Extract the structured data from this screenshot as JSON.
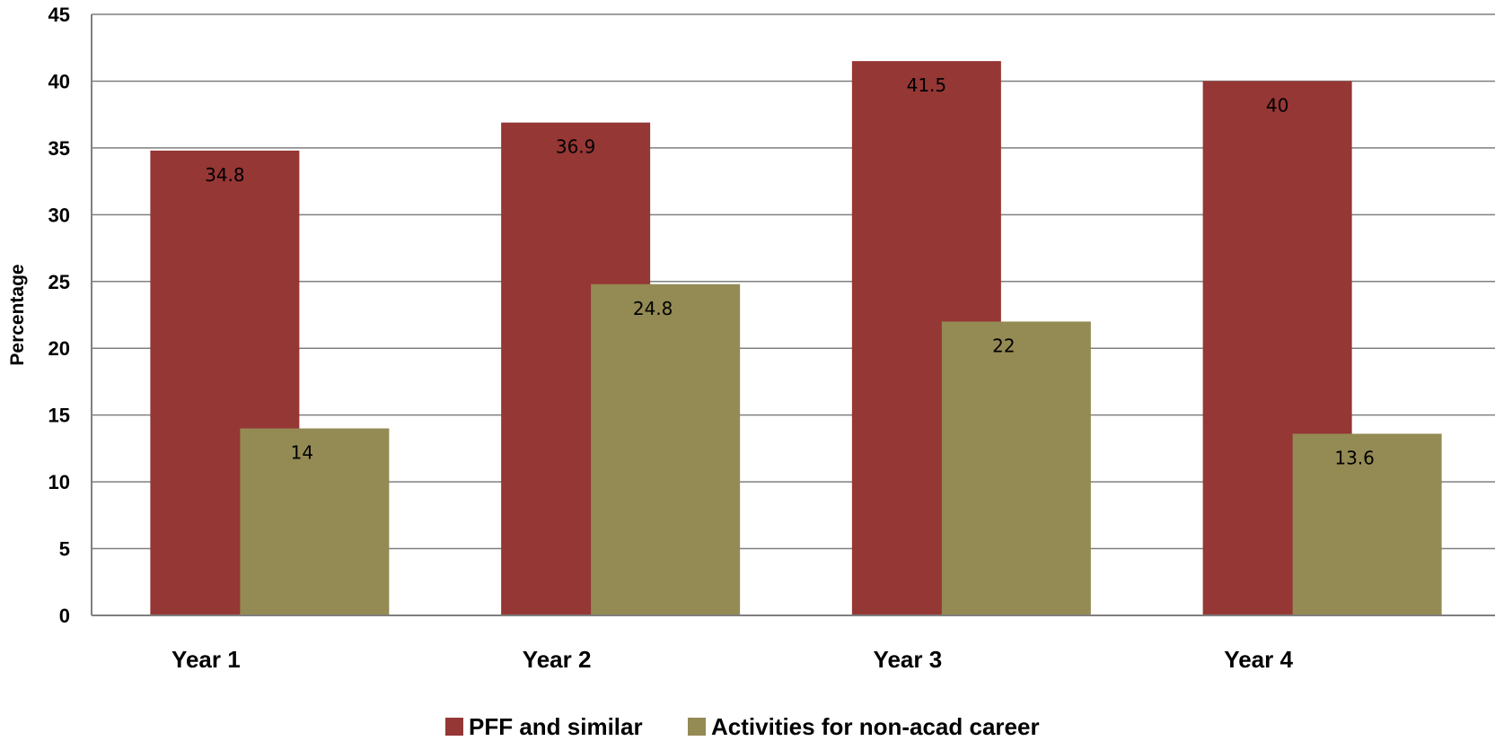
{
  "chart_data": {
    "type": "bar",
    "title": "",
    "xlabel": "",
    "ylabel": "Percentage",
    "ylim": [
      0,
      45
    ],
    "ytick_step": 5,
    "grid": true,
    "legend_position": "bottom",
    "categories": [
      "Year 1",
      "Year 2",
      "Year 3",
      "Year 4"
    ],
    "series": [
      {
        "name": "PFF and similar",
        "color": "#953735",
        "values": [
          34.8,
          36.9,
          41.5,
          40
        ],
        "labels": [
          "34.8",
          "36.9",
          "41.5",
          "40"
        ]
      },
      {
        "name": "Activities for non-acad career",
        "color": "#948A54",
        "values": [
          14,
          24.8,
          22,
          13.6
        ],
        "labels": [
          "14",
          "24.8",
          "22",
          "13.6"
        ]
      }
    ]
  }
}
